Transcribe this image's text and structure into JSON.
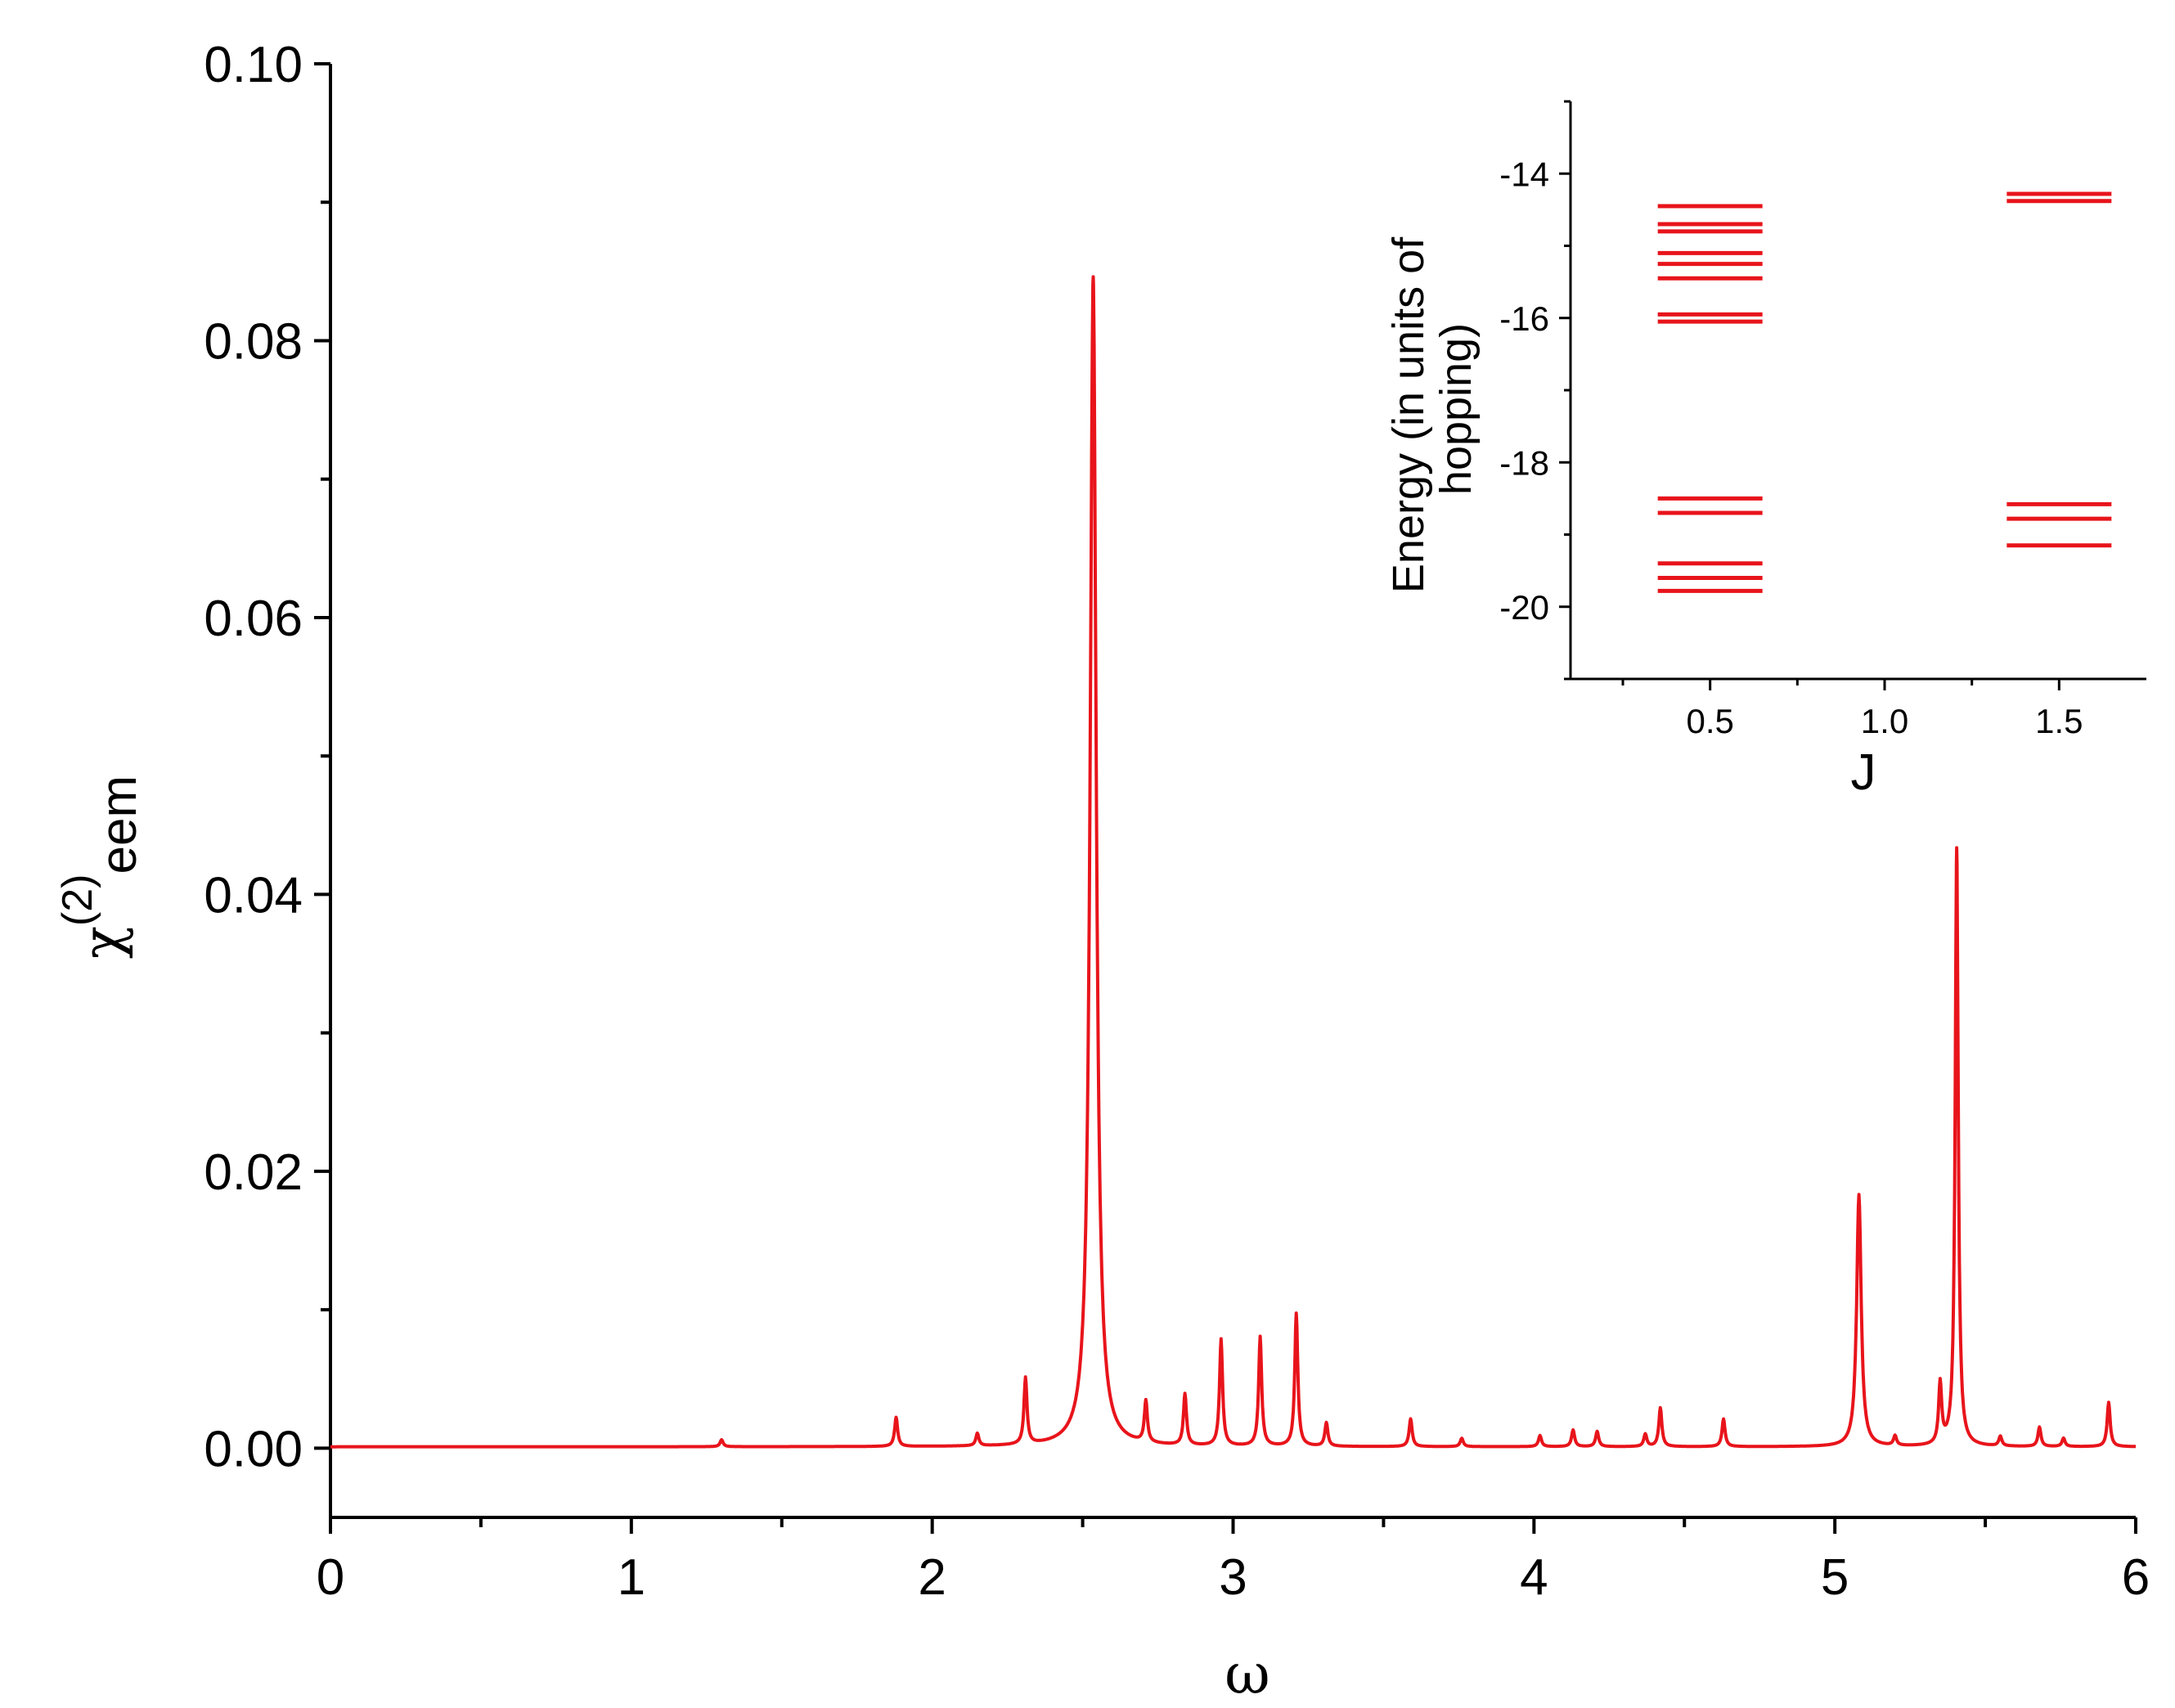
{
  "chart_data": [
    {
      "type": "line",
      "title": "",
      "xlabel": "ω",
      "ylabel_main": "χ",
      "ylabel_sup": "(2)",
      "ylabel_sub": "eem",
      "xlim": [
        0,
        6
      ],
      "ylim": [
        -0.005,
        0.1
      ],
      "xticks": [
        0,
        1,
        2,
        3,
        4,
        5,
        6
      ],
      "xtick_labels": [
        "0",
        "1",
        "2",
        "3",
        "4",
        "5",
        "6"
      ],
      "yticks": [
        0.0,
        0.02,
        0.04,
        0.06,
        0.08,
        0.1
      ],
      "ytick_labels": [
        "0.00",
        "0.02",
        "0.04",
        "0.06",
        "0.08",
        "0.10"
      ],
      "grid": false,
      "color": "#e8141b",
      "baseline": 0.0001,
      "peaks": [
        {
          "x": 1.3,
          "y": 0.0005
        },
        {
          "x": 1.88,
          "y": 0.0021
        },
        {
          "x": 2.15,
          "y": 0.0009
        },
        {
          "x": 2.31,
          "y": 0.0048
        },
        {
          "x": 2.535,
          "y": 0.0845
        },
        {
          "x": 2.71,
          "y": 0.003
        },
        {
          "x": 2.84,
          "y": 0.0037
        },
        {
          "x": 2.96,
          "y": 0.0077
        },
        {
          "x": 3.09,
          "y": 0.0079
        },
        {
          "x": 3.21,
          "y": 0.0096
        },
        {
          "x": 3.31,
          "y": 0.0017
        },
        {
          "x": 3.59,
          "y": 0.002
        },
        {
          "x": 3.76,
          "y": 0.0006
        },
        {
          "x": 4.02,
          "y": 0.0008
        },
        {
          "x": 4.13,
          "y": 0.0012
        },
        {
          "x": 4.21,
          "y": 0.0011
        },
        {
          "x": 4.37,
          "y": 0.0009
        },
        {
          "x": 4.42,
          "y": 0.0028
        },
        {
          "x": 4.63,
          "y": 0.002
        },
        {
          "x": 5.08,
          "y": 0.0182
        },
        {
          "x": 5.2,
          "y": 0.0007
        },
        {
          "x": 5.35,
          "y": 0.0044
        },
        {
          "x": 5.405,
          "y": 0.0432
        },
        {
          "x": 5.55,
          "y": 0.0007
        },
        {
          "x": 5.68,
          "y": 0.0014
        },
        {
          "x": 5.76,
          "y": 0.0006
        },
        {
          "x": 5.91,
          "y": 0.0032
        }
      ]
    },
    {
      "type": "scatter",
      "title": "",
      "xlabel": "J",
      "ylabel_line1": "Energy (in units of",
      "ylabel_line2": "hopping)",
      "xlim": [
        0.1,
        1.75
      ],
      "ylim": [
        -21,
        -13
      ],
      "xticks": [
        0.5,
        1.0,
        1.5
      ],
      "xtick_labels": [
        "0.5",
        "1.0",
        "1.5"
      ],
      "yticks": [
        -20,
        -18,
        -16,
        -14
      ],
      "ytick_labels": [
        "-20",
        "-18",
        "-16",
        "-14"
      ],
      "grid": false,
      "color": "#e8141b",
      "marker": "horizontal-line",
      "levels": [
        {
          "J": 0.5,
          "x_from": 0.35,
          "x_to": 0.65,
          "energies": [
            -14.45,
            -14.7,
            -14.8,
            -15.1,
            -15.25,
            -15.45,
            -15.95,
            -16.05,
            -18.5,
            -18.7,
            -19.4,
            -19.6,
            -19.78
          ]
        },
        {
          "J": 1.5,
          "x_from": 1.35,
          "x_to": 1.65,
          "energies": [
            -14.28,
            -14.38,
            -18.58,
            -18.78,
            -19.15
          ]
        }
      ]
    }
  ]
}
